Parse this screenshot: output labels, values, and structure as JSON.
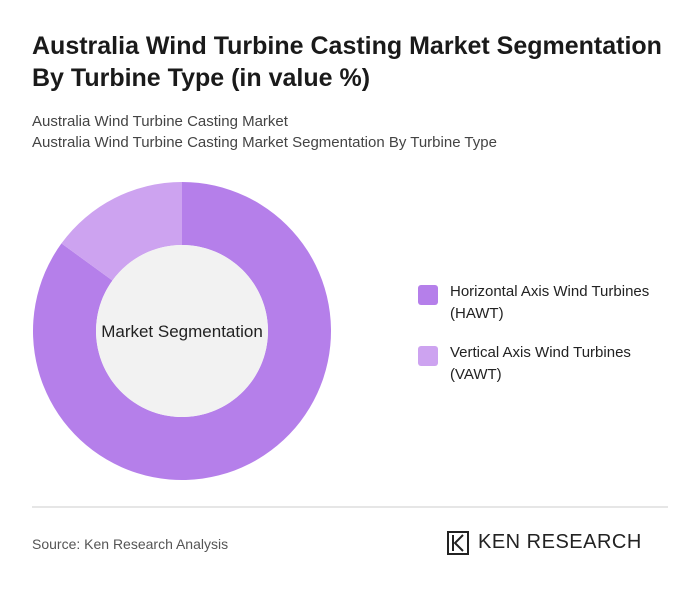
{
  "chart_data": {
    "type": "donut",
    "title": "Australia Wind Turbine Casting Market Segmentation By Turbine Type (in value %)",
    "subtitle": [
      "Australia Wind Turbine Casting Market",
      "Australia Wind Turbine Casting Market Segmentation By Turbine Type"
    ],
    "center_label": "Market Segmentation",
    "categories": [
      "Horizontal Axis Wind Turbines (HAWT)",
      "Vertical Axis Wind Turbines (VAWT)"
    ],
    "values": [
      85,
      15
    ],
    "colors": [
      "#b57fea",
      "#cda3f0"
    ],
    "source": "Source: Ken Research Analysis",
    "logo": "KEN RESEARCH"
  }
}
